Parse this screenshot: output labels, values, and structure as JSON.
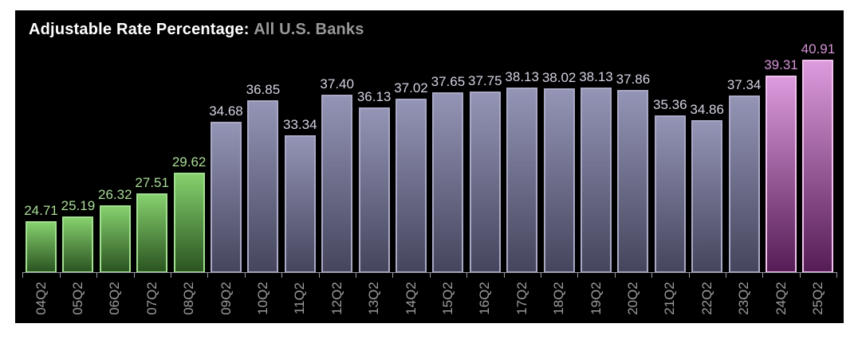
{
  "title": {
    "main": "Adjustable Rate Percentage:",
    "subtitle": "All U.S. Banks"
  },
  "chart_data": {
    "type": "bar",
    "title": "Adjustable Rate Percentage:",
    "subtitle": "All U.S. Banks",
    "categories": [
      "04Q2",
      "05Q2",
      "06Q2",
      "07Q2",
      "08Q2",
      "09Q2",
      "10Q2",
      "11Q2",
      "12Q2",
      "13Q2",
      "14Q2",
      "15Q2",
      "16Q2",
      "17Q2",
      "18Q2",
      "19Q2",
      "20Q2",
      "21Q2",
      "22Q2",
      "23Q2",
      "24Q2",
      "25Q2"
    ],
    "values": [
      24.71,
      25.19,
      26.32,
      27.51,
      29.62,
      34.68,
      36.85,
      33.34,
      37.4,
      36.13,
      37.02,
      37.65,
      37.75,
      38.13,
      38.02,
      38.13,
      37.86,
      35.36,
      34.86,
      37.34,
      39.31,
      40.91
    ],
    "groups": [
      "green",
      "green",
      "green",
      "green",
      "green",
      "slate",
      "slate",
      "slate",
      "slate",
      "slate",
      "slate",
      "slate",
      "slate",
      "slate",
      "slate",
      "slate",
      "slate",
      "slate",
      "slate",
      "slate",
      "pink",
      "pink"
    ],
    "xlabel": "",
    "ylabel": "",
    "ylim": [
      19.65,
      41.5
    ],
    "grid": false,
    "legend": false,
    "value_labels_shown": true,
    "background": "#000000",
    "colors": {
      "green": {
        "top": "#85d06d",
        "bottom": "#2b5421",
        "border": "#a2e090",
        "label": "#a9dd97"
      },
      "slate": {
        "top": "#9495b6",
        "bottom": "#45455d",
        "border": "#a9a9c5",
        "label": "#d3d3e3"
      },
      "pink": {
        "top": "#dc9bdd",
        "bottom": "#551d56",
        "border": "#f0c0ec",
        "label": "#d493d6"
      },
      "axis": "#9898a6",
      "tick_label": "#9c9c9c",
      "title_main": "#ffffff",
      "title_subtitle": "#999999"
    }
  }
}
